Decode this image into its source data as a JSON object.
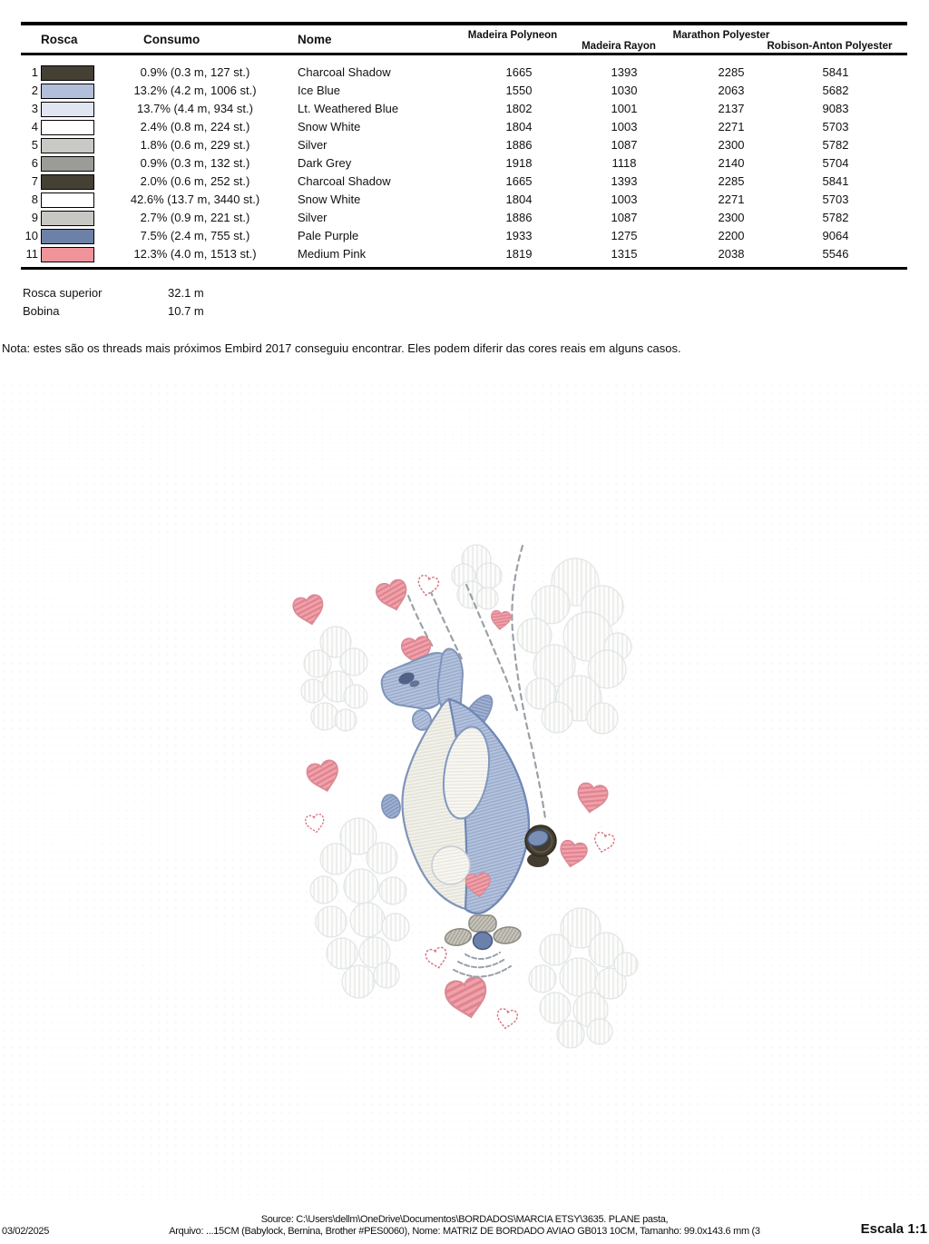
{
  "table": {
    "headers": {
      "rosca": "Rosca",
      "consumo": "Consumo",
      "nome": "Nome",
      "polyneon": "Madeira Polyneon",
      "rayon": "Madeira Rayon",
      "marathon": "Marathon Polyester",
      "robison": "Robison-Anton Polyester"
    },
    "rows": [
      {
        "n": "1",
        "color": "#454034",
        "consumo": "0.9% (0.3 m, 127 st.)",
        "nome": "Charcoal Shadow",
        "polyneon": "1665",
        "rayon": "1393",
        "marathon": "2285",
        "robison": "5841"
      },
      {
        "n": "2",
        "color": "#b2bfdb",
        "consumo": "13.2% (4.2 m, 1006 st.)",
        "nome": "Ice Blue",
        "polyneon": "1550",
        "rayon": "1030",
        "marathon": "2063",
        "robison": "5682"
      },
      {
        "n": "3",
        "color": "#dfe5f1",
        "consumo": "13.7% (4.4 m, 934 st.)",
        "nome": "Lt. Weathered Blue",
        "polyneon": "1802",
        "rayon": "1001",
        "marathon": "2137",
        "robison": "9083"
      },
      {
        "n": "4",
        "color": "#ffffff",
        "consumo": "2.4% (0.8 m, 224 st.)",
        "nome": "Snow White",
        "polyneon": "1804",
        "rayon": "1003",
        "marathon": "2271",
        "robison": "5703"
      },
      {
        "n": "5",
        "color": "#c9c9c6",
        "consumo": "1.8% (0.6 m, 229 st.)",
        "nome": "Silver",
        "polyneon": "1886",
        "rayon": "1087",
        "marathon": "2300",
        "robison": "5782"
      },
      {
        "n": "6",
        "color": "#9b9b97",
        "consumo": "0.9% (0.3 m, 132 st.)",
        "nome": "Dark Grey",
        "polyneon": "1918",
        "rayon": "1118",
        "marathon": "2140",
        "robison": "5704"
      },
      {
        "n": "7",
        "color": "#454034",
        "consumo": "2.0% (0.6 m, 252 st.)",
        "nome": "Charcoal Shadow",
        "polyneon": "1665",
        "rayon": "1393",
        "marathon": "2285",
        "robison": "5841"
      },
      {
        "n": "8",
        "color": "#ffffff",
        "consumo": "42.6% (13.7 m, 3440 st.)",
        "nome": "Snow White",
        "polyneon": "1804",
        "rayon": "1003",
        "marathon": "2271",
        "robison": "5703"
      },
      {
        "n": "9",
        "color": "#c7c7c4",
        "consumo": "2.7% (0.9 m, 221 st.)",
        "nome": "Silver",
        "polyneon": "1886",
        "rayon": "1087",
        "marathon": "2300",
        "robison": "5782"
      },
      {
        "n": "10",
        "color": "#6d81a6",
        "consumo": "7.5% (2.4 m, 755 st.)",
        "nome": "Pale Purple",
        "polyneon": "1933",
        "rayon": "1275",
        "marathon": "2200",
        "robison": "9064"
      },
      {
        "n": "11",
        "color": "#f0949c",
        "consumo": "12.3% (4.0 m, 1513 st.)",
        "nome": "Medium Pink",
        "polyneon": "1819",
        "rayon": "1315",
        "marathon": "2038",
        "robison": "5546"
      }
    ]
  },
  "summary": {
    "rosca_superior_label": "Rosca superior",
    "rosca_superior_value": "32.1 m",
    "bobina_label": "Bobina",
    "bobina_value": "10.7 m"
  },
  "note": "Nota: estes são os threads mais próximos Embird 2017 conseguiu encontrar. Eles podem diferir das cores reais em alguns casos.",
  "footer": {
    "date": "03/02/2025",
    "source_line": "Source: C:\\Users\\dellm\\OneDrive\\Documentos\\BORDADOS\\MARCIA ETSY\\3635. PLANE pasta,",
    "arquivo_line": "Arquivo: ...15CM (Babylock, Bernina, Brother #PES0060), Nome: MATRIZ DE BORDADO AVIAO GB013 10CM, Tamanho: 99.0x143.6 mm (3",
    "escala": "Escala 1:1"
  },
  "design": {
    "subject": "diving cartoon airplane with clouds and hearts embroidery preview",
    "colors": {
      "plane_blue": "#b6c3dc",
      "plane_blue_dark": "#8296bd",
      "belly_ivory": "#f2f1ea",
      "heart_pink": "#efa2ab",
      "heart_outline_pink": "#d8707e",
      "cloud_white": "#fcfcfa",
      "trail_gray": "#9aa1a8",
      "wheel_charcoal": "#433d31",
      "spinner_blue": "#6b81ab"
    }
  }
}
